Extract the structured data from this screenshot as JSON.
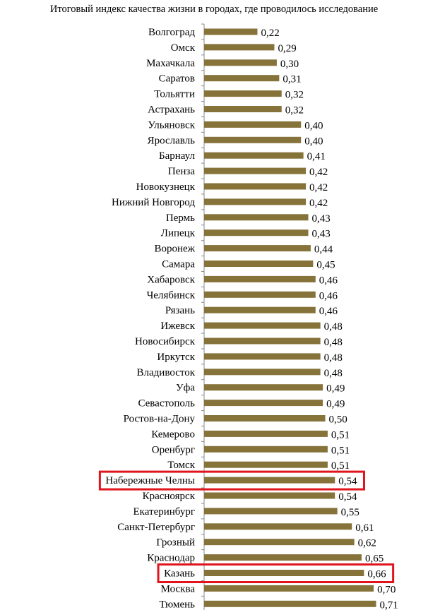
{
  "chart_data": {
    "type": "bar",
    "orientation": "horizontal",
    "title": "Итоговый индекс качества жизни в городах, где проводилось исследование",
    "xlabel": "",
    "ylabel": "",
    "bar_color": "#85733a",
    "highlight_color": "#e0141c",
    "highlighted": [
      "Набережные Челны",
      "Казань"
    ],
    "xlim": [
      0,
      0.75
    ],
    "grid": false,
    "categories": [
      "Волгоград",
      "Омск",
      "Махачкала",
      "Саратов",
      "Тольятти",
      "Астрахань",
      "Ульяновск",
      "Ярославль",
      "Барнаул",
      "Пенза",
      "Новокузнецк",
      "Нижний Новгород",
      "Пермь",
      "Липецк",
      "Воронеж",
      "Самара",
      "Хабаровск",
      "Челябинск",
      "Рязань",
      "Ижевск",
      "Новосибирск",
      "Иркутск",
      "Владивосток",
      "Уфа",
      "Севастополь",
      "Ростов-на-Дону",
      "Кемерово",
      "Оренбург",
      "Томск",
      "Набережные Челны",
      "Красноярск",
      "Екатеринбург",
      "Санкт-Петербург",
      "Грозный",
      "Краснодар",
      "Казань",
      "Москва",
      "Тюмень"
    ],
    "values": [
      0.22,
      0.29,
      0.3,
      0.31,
      0.32,
      0.32,
      0.4,
      0.4,
      0.41,
      0.42,
      0.42,
      0.42,
      0.43,
      0.43,
      0.44,
      0.45,
      0.46,
      0.46,
      0.46,
      0.48,
      0.48,
      0.48,
      0.48,
      0.49,
      0.49,
      0.5,
      0.51,
      0.51,
      0.51,
      0.54,
      0.54,
      0.55,
      0.61,
      0.62,
      0.65,
      0.66,
      0.7,
      0.71
    ],
    "value_labels": [
      "0,22",
      "0,29",
      "0,30",
      "0,31",
      "0,32",
      "0,32",
      "0,40",
      "0,40",
      "0,41",
      "0,42",
      "0,42",
      "0,42",
      "0,43",
      "0,43",
      "0,44",
      "0,45",
      "0,46",
      "0,46",
      "0,46",
      "0,48",
      "0,48",
      "0,48",
      "0,48",
      "0,49",
      "0,49",
      "0,50",
      "0,51",
      "0,51",
      "0,51",
      "0,54",
      "0,54",
      "0,55",
      "0,61",
      "0,62",
      "0,65",
      "0,66",
      "0,70",
      "0,71"
    ]
  }
}
